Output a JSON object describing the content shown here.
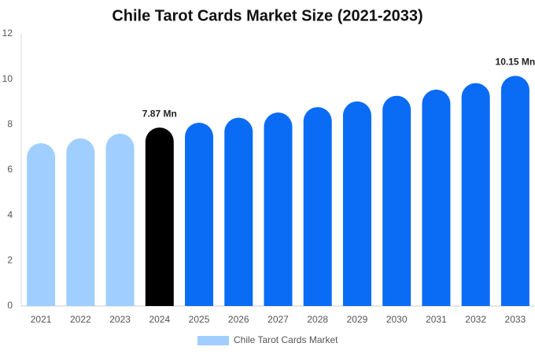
{
  "chart_data": {
    "type": "bar",
    "title": "Chile Tarot Cards Market Size (2021-2033)",
    "categories": [
      "2021",
      "2022",
      "2023",
      "2024",
      "2025",
      "2026",
      "2027",
      "2028",
      "2029",
      "2030",
      "2031",
      "2032",
      "2033"
    ],
    "series": [
      {
        "name": "Chile Tarot Cards Market",
        "color": "#a0cfff",
        "colors": [
          "#a0cfff",
          "#a0cfff",
          "#a0cfff",
          "#000000",
          "#0a6cf5",
          "#0a6cf5",
          "#0a6cf5",
          "#0a6cf5",
          "#0a6cf5",
          "#0a6cf5",
          "#0a6cf5",
          "#0a6cf5",
          "#0a6cf5"
        ],
        "values": [
          7.18,
          7.39,
          7.6,
          7.87,
          8.08,
          8.3,
          8.53,
          8.77,
          9.02,
          9.27,
          9.54,
          9.83,
          10.15
        ],
        "value_labels": [
          null,
          null,
          null,
          "7.87 Mn",
          null,
          null,
          null,
          null,
          null,
          null,
          null,
          null,
          "10.15 Mn"
        ]
      }
    ],
    "ylim": [
      0,
      12
    ],
    "yticks": [
      0,
      2,
      4,
      6,
      8,
      10,
      12
    ],
    "grid": false,
    "legend": "bottom"
  }
}
